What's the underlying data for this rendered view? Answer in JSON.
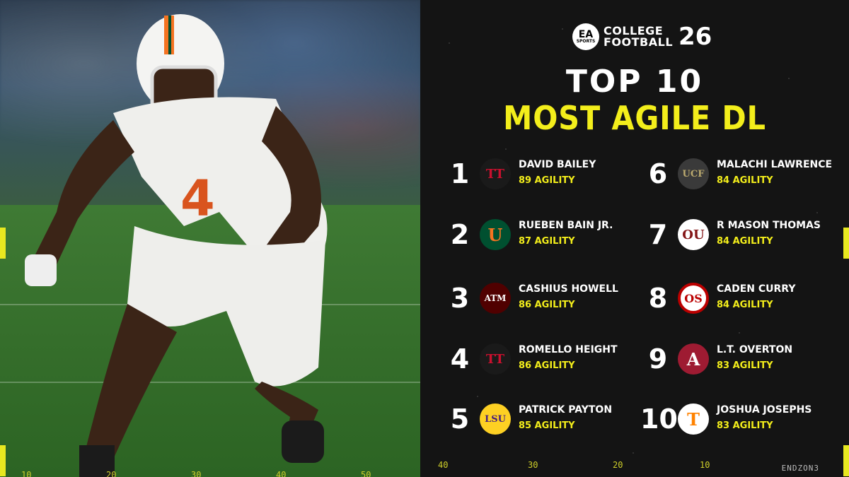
{
  "brand": {
    "badge_top": "EA",
    "badge_bottom": "SPORTS",
    "line1": "COLLEGE",
    "line2": "FOOTBALL",
    "number": "26"
  },
  "title": {
    "line1": "TOP 10",
    "line2": "MOST AGILE DL"
  },
  "players": [
    {
      "rank": "1",
      "name": "DAVID BAILEY",
      "agility": "89 AGILITY",
      "team_icon": "texas-tech-logo",
      "logo_text": "TT",
      "bg": "#1a1a1a",
      "fg": "#c8102e"
    },
    {
      "rank": "2",
      "name": "RUEBEN BAIN JR.",
      "agility": "87 AGILITY",
      "team_icon": "miami-logo",
      "logo_text": "U",
      "bg": "#005030",
      "fg": "#f47321"
    },
    {
      "rank": "3",
      "name": "CASHIUS HOWELL",
      "agility": "86 AGILITY",
      "team_icon": "texas-am-logo",
      "logo_text": "ATM",
      "bg": "#500000",
      "fg": "#ffffff"
    },
    {
      "rank": "4",
      "name": "ROMELLO HEIGHT",
      "agility": "86 AGILITY",
      "team_icon": "texas-tech-logo",
      "logo_text": "TT",
      "bg": "#1a1a1a",
      "fg": "#c8102e"
    },
    {
      "rank": "5",
      "name": "PATRICK PAYTON",
      "agility": "85 AGILITY",
      "team_icon": "lsu-logo",
      "logo_text": "LSU",
      "bg": "#fdd023",
      "fg": "#461d7c"
    },
    {
      "rank": "6",
      "name": "MALACHI LAWRENCE",
      "agility": "84 AGILITY",
      "team_icon": "ucf-logo",
      "logo_text": "UCF",
      "bg": "#3a3a3a",
      "fg": "#baa96e"
    },
    {
      "rank": "7",
      "name": "R MASON THOMAS",
      "agility": "84 AGILITY",
      "team_icon": "oklahoma-logo",
      "logo_text": "OU",
      "bg": "#ffffff",
      "fg": "#841617"
    },
    {
      "rank": "8",
      "name": "CADEN CURRY",
      "agility": "84 AGILITY",
      "team_icon": "ohio-state-logo",
      "logo_text": "OS",
      "bg": "#ffffff",
      "fg": "#bb0000"
    },
    {
      "rank": "9",
      "name": "L.T. OVERTON",
      "agility": "83 AGILITY",
      "team_icon": "alabama-logo",
      "logo_text": "A",
      "bg": "#9e1b32",
      "fg": "#ffffff"
    },
    {
      "rank": "10",
      "name": "JOSHUA JOSEPHS",
      "agility": "83 AGILITY",
      "team_icon": "tennessee-logo",
      "logo_text": "T",
      "bg": "#ffffff",
      "fg": "#ff8200"
    }
  ],
  "yard_numbers_left": [
    "10",
    "20",
    "30",
    "40",
    "50"
  ],
  "yard_numbers_right": [
    "40",
    "30",
    "20",
    "10"
  ],
  "watermark": "ENDZON3",
  "colors": {
    "accent": "#f3ee1b",
    "panel": "#141414"
  }
}
